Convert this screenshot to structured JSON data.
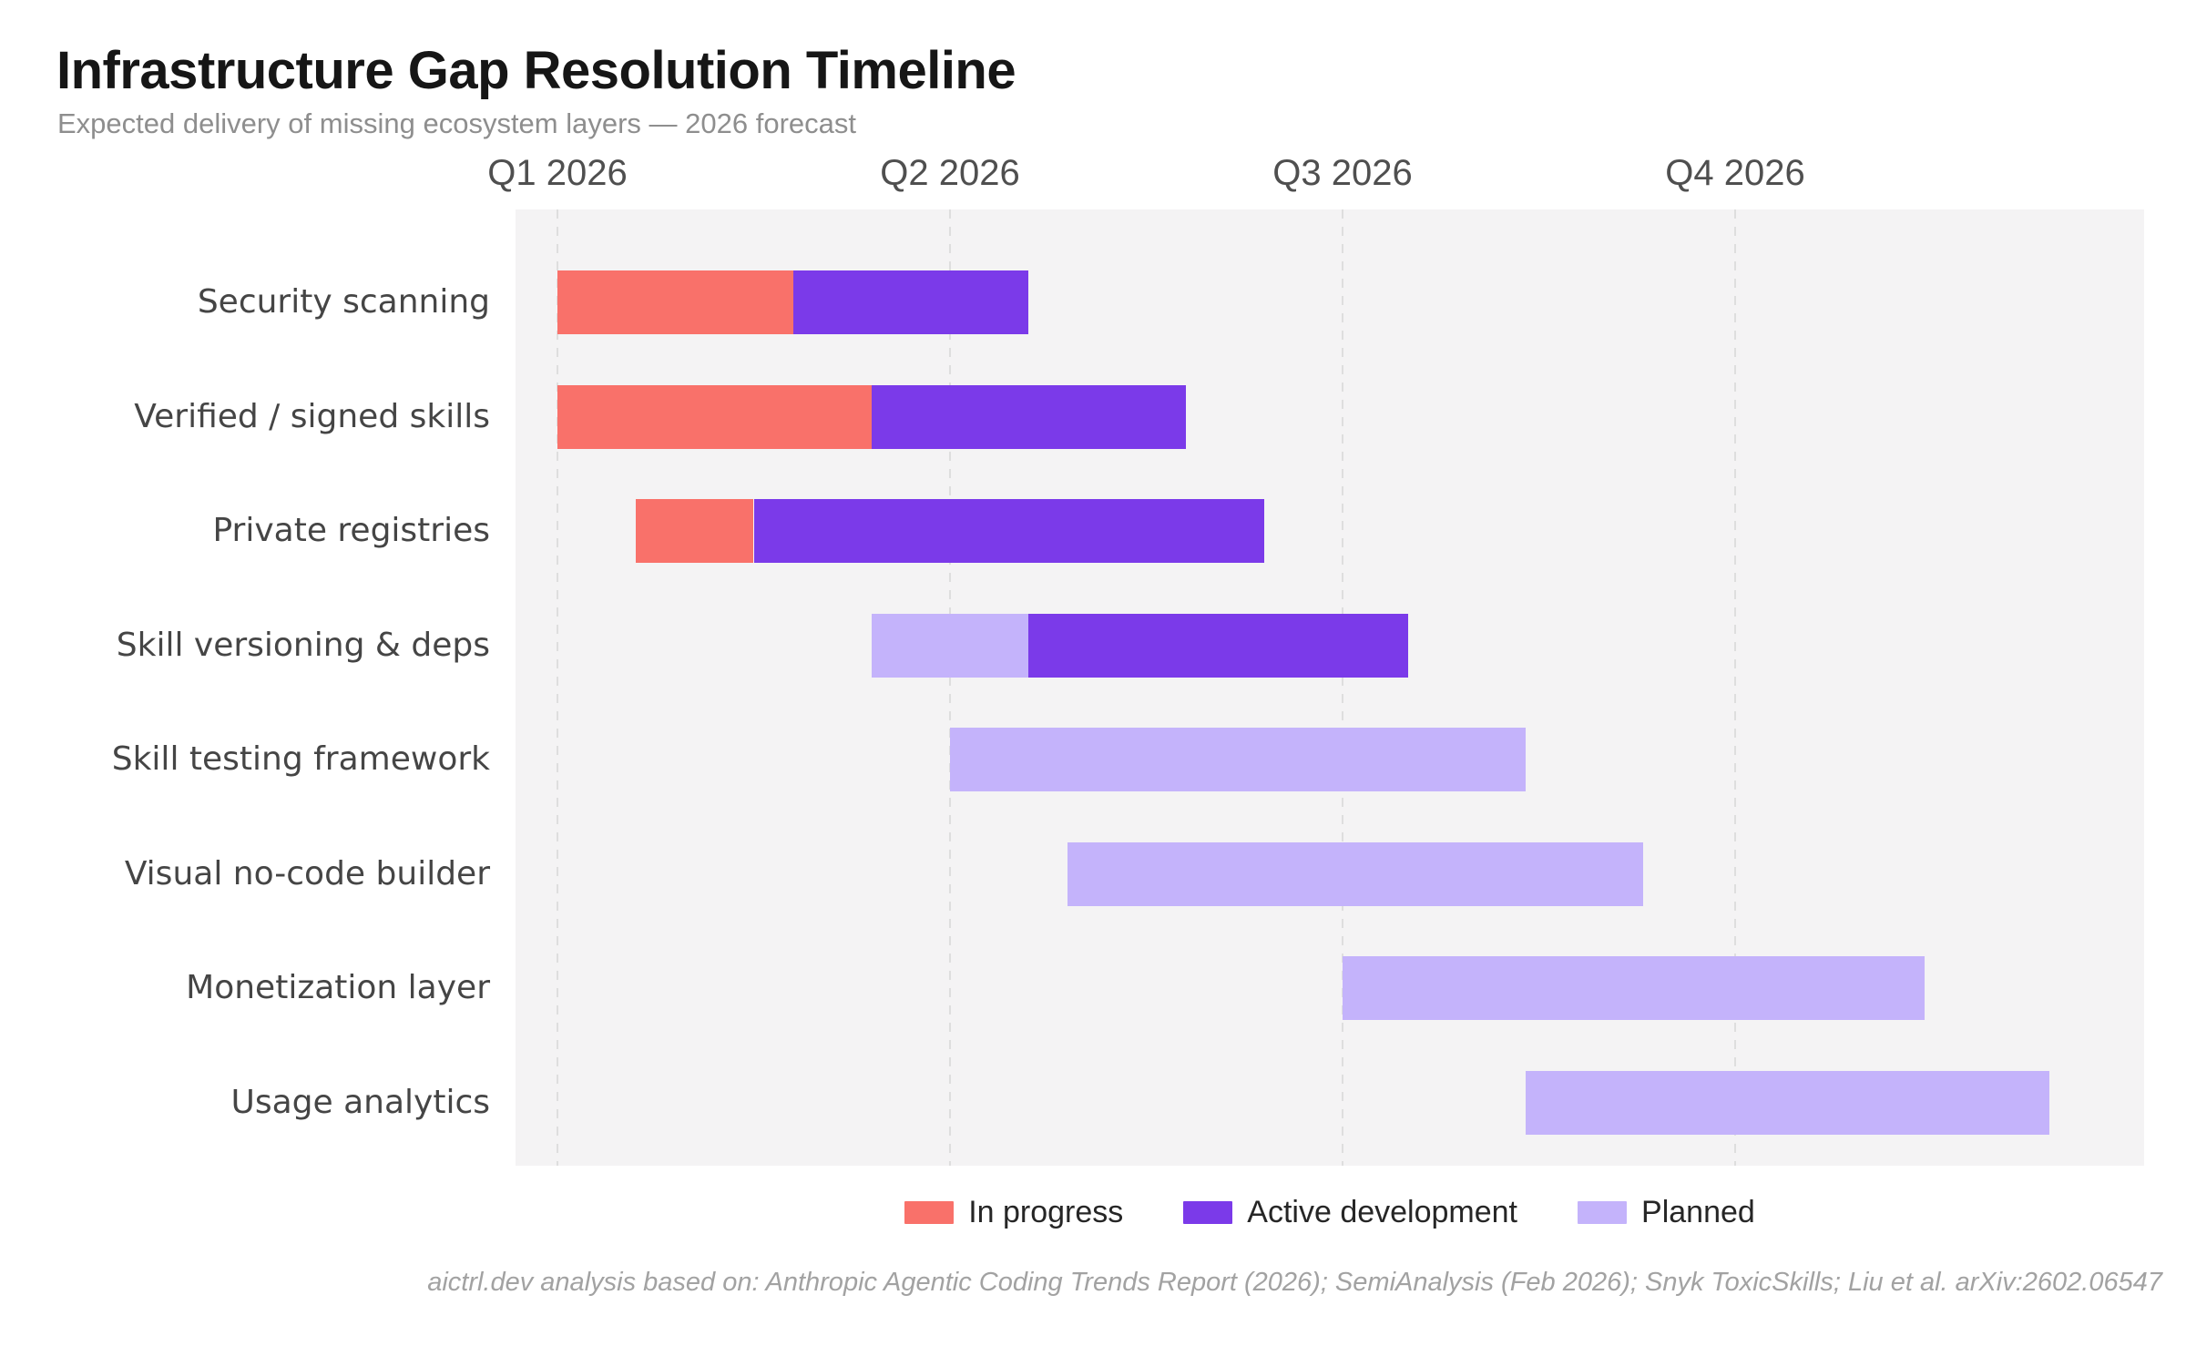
{
  "page": {
    "title": "Infrastructure Gap Resolution Timeline",
    "subtitle": "Expected delivery of missing ecosystem layers — 2026 forecast",
    "source_note": "aictrl.dev analysis based on: Anthropic Agentic Coding Trends Report (2026); SemiAnalysis (Feb 2026); Snyk ToxicSkills; Liu et al. arXiv:2602.06547"
  },
  "colors": {
    "in_progress": "#f9716a",
    "active": "#7b3ae9",
    "planned": "#c4b3fb",
    "plot_background": "#f4f3f4",
    "gridline": "#dedede"
  },
  "chart_data": {
    "type": "bar",
    "variant": "gantt-timeline",
    "title": "Infrastructure Gap Resolution Timeline",
    "subtitle": "Expected delivery of missing ecosystem layers — 2026 forecast",
    "grid": "vertical-dashed",
    "legend_position": "bottom-center",
    "x_axis": {
      "unit": "months from 2026-01-01",
      "range_months": [
        0,
        12
      ],
      "ticks": [
        {
          "label": "Q1 2026",
          "month": 0
        },
        {
          "label": "Q2 2026",
          "month": 3
        },
        {
          "label": "Q3 2026",
          "month": 6
        },
        {
          "label": "Q4 2026",
          "month": 9
        }
      ]
    },
    "legend": [
      {
        "label": "In progress",
        "status": "in_progress"
      },
      {
        "label": "Active development",
        "status": "active"
      },
      {
        "label": "Planned",
        "status": "planned"
      }
    ],
    "tasks": [
      {
        "label": "Security scanning",
        "segments": [
          {
            "status": "in_progress",
            "start_month": 0,
            "end_month": 1.8
          },
          {
            "status": "active",
            "start_month": 1.8,
            "end_month": 3.6
          }
        ]
      },
      {
        "label": "Verified / signed skills",
        "segments": [
          {
            "status": "in_progress",
            "start_month": 0,
            "end_month": 2.4
          },
          {
            "status": "active",
            "start_month": 2.4,
            "end_month": 4.8
          }
        ]
      },
      {
        "label": "Private registries",
        "segments": [
          {
            "status": "in_progress",
            "start_month": 0.6,
            "end_month": 1.5
          },
          {
            "status": "active",
            "start_month": 1.5,
            "end_month": 5.4
          }
        ]
      },
      {
        "label": "Skill versioning & deps",
        "segments": [
          {
            "status": "planned",
            "start_month": 2.4,
            "end_month": 3.6
          },
          {
            "status": "active",
            "start_month": 3.6,
            "end_month": 6.5
          }
        ]
      },
      {
        "label": "Skill testing framework",
        "segments": [
          {
            "status": "planned",
            "start_month": 3.0,
            "end_month": 7.4
          }
        ]
      },
      {
        "label": "Visual no-code builder",
        "segments": [
          {
            "status": "planned",
            "start_month": 3.9,
            "end_month": 8.3
          }
        ]
      },
      {
        "label": "Monetization layer",
        "segments": [
          {
            "status": "planned",
            "start_month": 6.0,
            "end_month": 10.45
          }
        ]
      },
      {
        "label": "Usage analytics",
        "segments": [
          {
            "status": "planned",
            "start_month": 7.4,
            "end_month": 11.4
          }
        ]
      }
    ],
    "source_note": "aictrl.dev analysis based on: Anthropic Agentic Coding Trends Report (2026); SemiAnalysis (Feb 2026); Snyk ToxicSkills; Liu et al. arXiv:2602.06547"
  }
}
